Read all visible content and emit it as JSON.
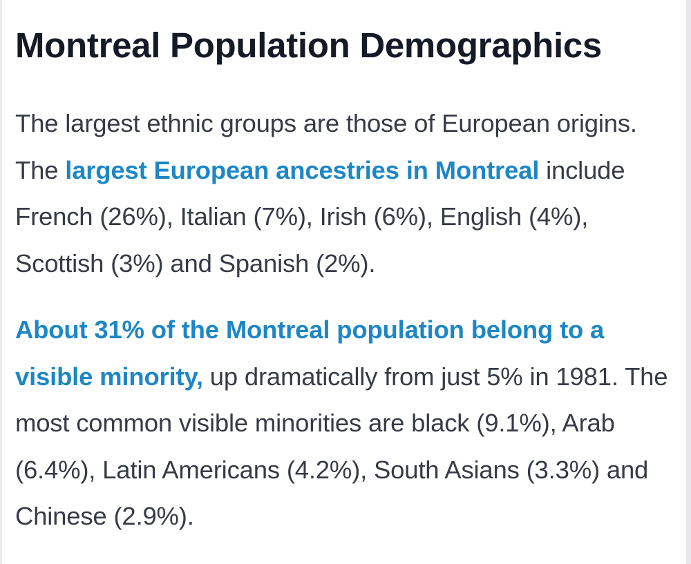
{
  "article": {
    "title": "Montreal Population Demographics",
    "paragraph1": {
      "text_before_link": "The largest ethnic groups are those of European origins. The ",
      "link_text": "largest European ancestries in Montreal",
      "text_after_link": " include French (26%), Italian (7%), Irish (6%), English (4%), Scottish (3%) and Spanish (2%)."
    },
    "paragraph2": {
      "link_text": "About 31% of the Montreal population belong to a visible minority,",
      "text_after_link": " up dramatically from just 5% in 1981. The most common visible minorities are black (9.1%), Arab (6.4%), Latin Americans (4.2%), South Asians (3.3%) and Chinese (2.9%)."
    }
  },
  "colors": {
    "heading": "#141a26",
    "body_text": "#373b46",
    "link": "#1d87c5",
    "background": "#ffffff"
  }
}
